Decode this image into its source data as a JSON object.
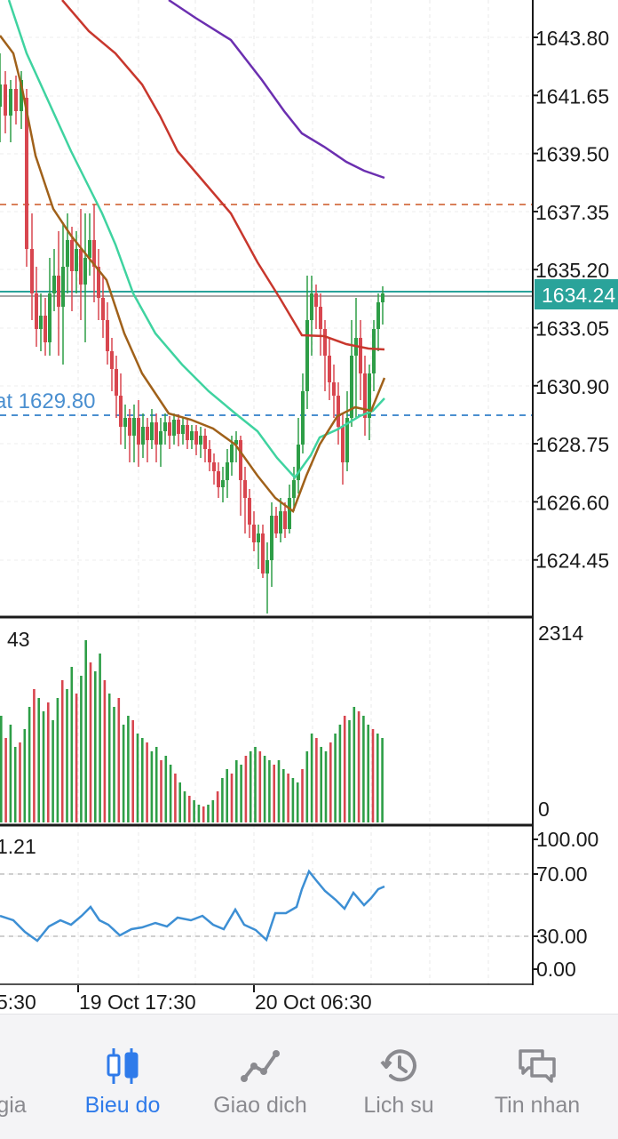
{
  "chart": {
    "price_axis_labels": [
      "1643.80",
      "1641.65",
      "1639.50",
      "1637.35",
      "1635.20",
      "1633.05",
      "1630.90",
      "1628.75",
      "1626.60",
      "1624.45"
    ],
    "current_price": "1634.24",
    "order_line_label": "at 1629.80",
    "volume_axis_max": "2314",
    "volume_axis_min": "0",
    "volume_value": "43",
    "oscillator_value": "1.21",
    "oscillator_axis_labels": [
      "100.00",
      "70.00",
      "30.00",
      "0.00"
    ],
    "time_labels": [
      "5:30",
      "19 Oct 17:30",
      "20 Oct 06:30"
    ],
    "colors": {
      "bull": "#2e9e47",
      "bear": "#d8464f",
      "ma_red": "#c8372d",
      "ma_green": "#3fd3a0",
      "ma_brown": "#a0611a",
      "ma_purple": "#6b2fb0",
      "current_price_bg": "#2aa39a",
      "order_line": "#4a8fd0",
      "stop_line": "#d9805a",
      "oscillator": "#3d8fd4"
    }
  },
  "nav": {
    "items": [
      {
        "label": "gia",
        "icon": "quotes-icon",
        "active": false
      },
      {
        "label": "Bieu do",
        "icon": "candlestick-chart-icon",
        "active": true
      },
      {
        "label": "Giao dich",
        "icon": "trade-line-icon",
        "active": false
      },
      {
        "label": "Lich su",
        "icon": "history-icon",
        "active": false
      },
      {
        "label": "Tin nhan",
        "icon": "messages-icon",
        "active": false
      }
    ]
  }
}
